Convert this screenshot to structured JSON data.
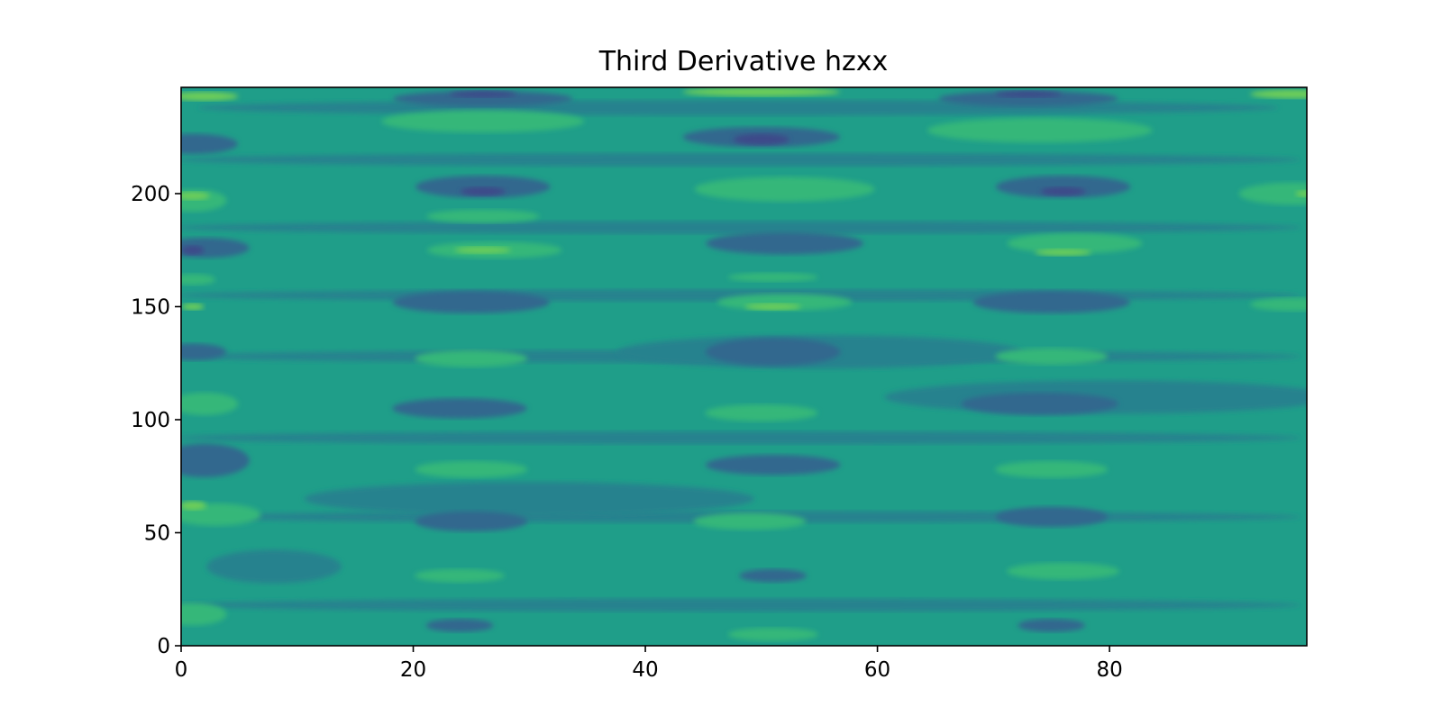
{
  "chart_data": {
    "type": "heatmap",
    "subtype": "filled-contour",
    "title": "Third Derivative hzxx",
    "xlabel": "",
    "ylabel": "",
    "xlim": [
      0,
      97
    ],
    "ylim": [
      0,
      247
    ],
    "x_ticks": [
      0,
      20,
      40,
      60,
      80
    ],
    "y_ticks": [
      0,
      50,
      100,
      150,
      200
    ],
    "colormap": "viridis",
    "levels": 8,
    "level_colors": [
      "#482475",
      "#3e4a89",
      "#31688e",
      "#26828e",
      "#1f9e89",
      "#35b779",
      "#6ece58",
      "#b5de2b"
    ],
    "grid": false,
    "legend": "none"
  }
}
